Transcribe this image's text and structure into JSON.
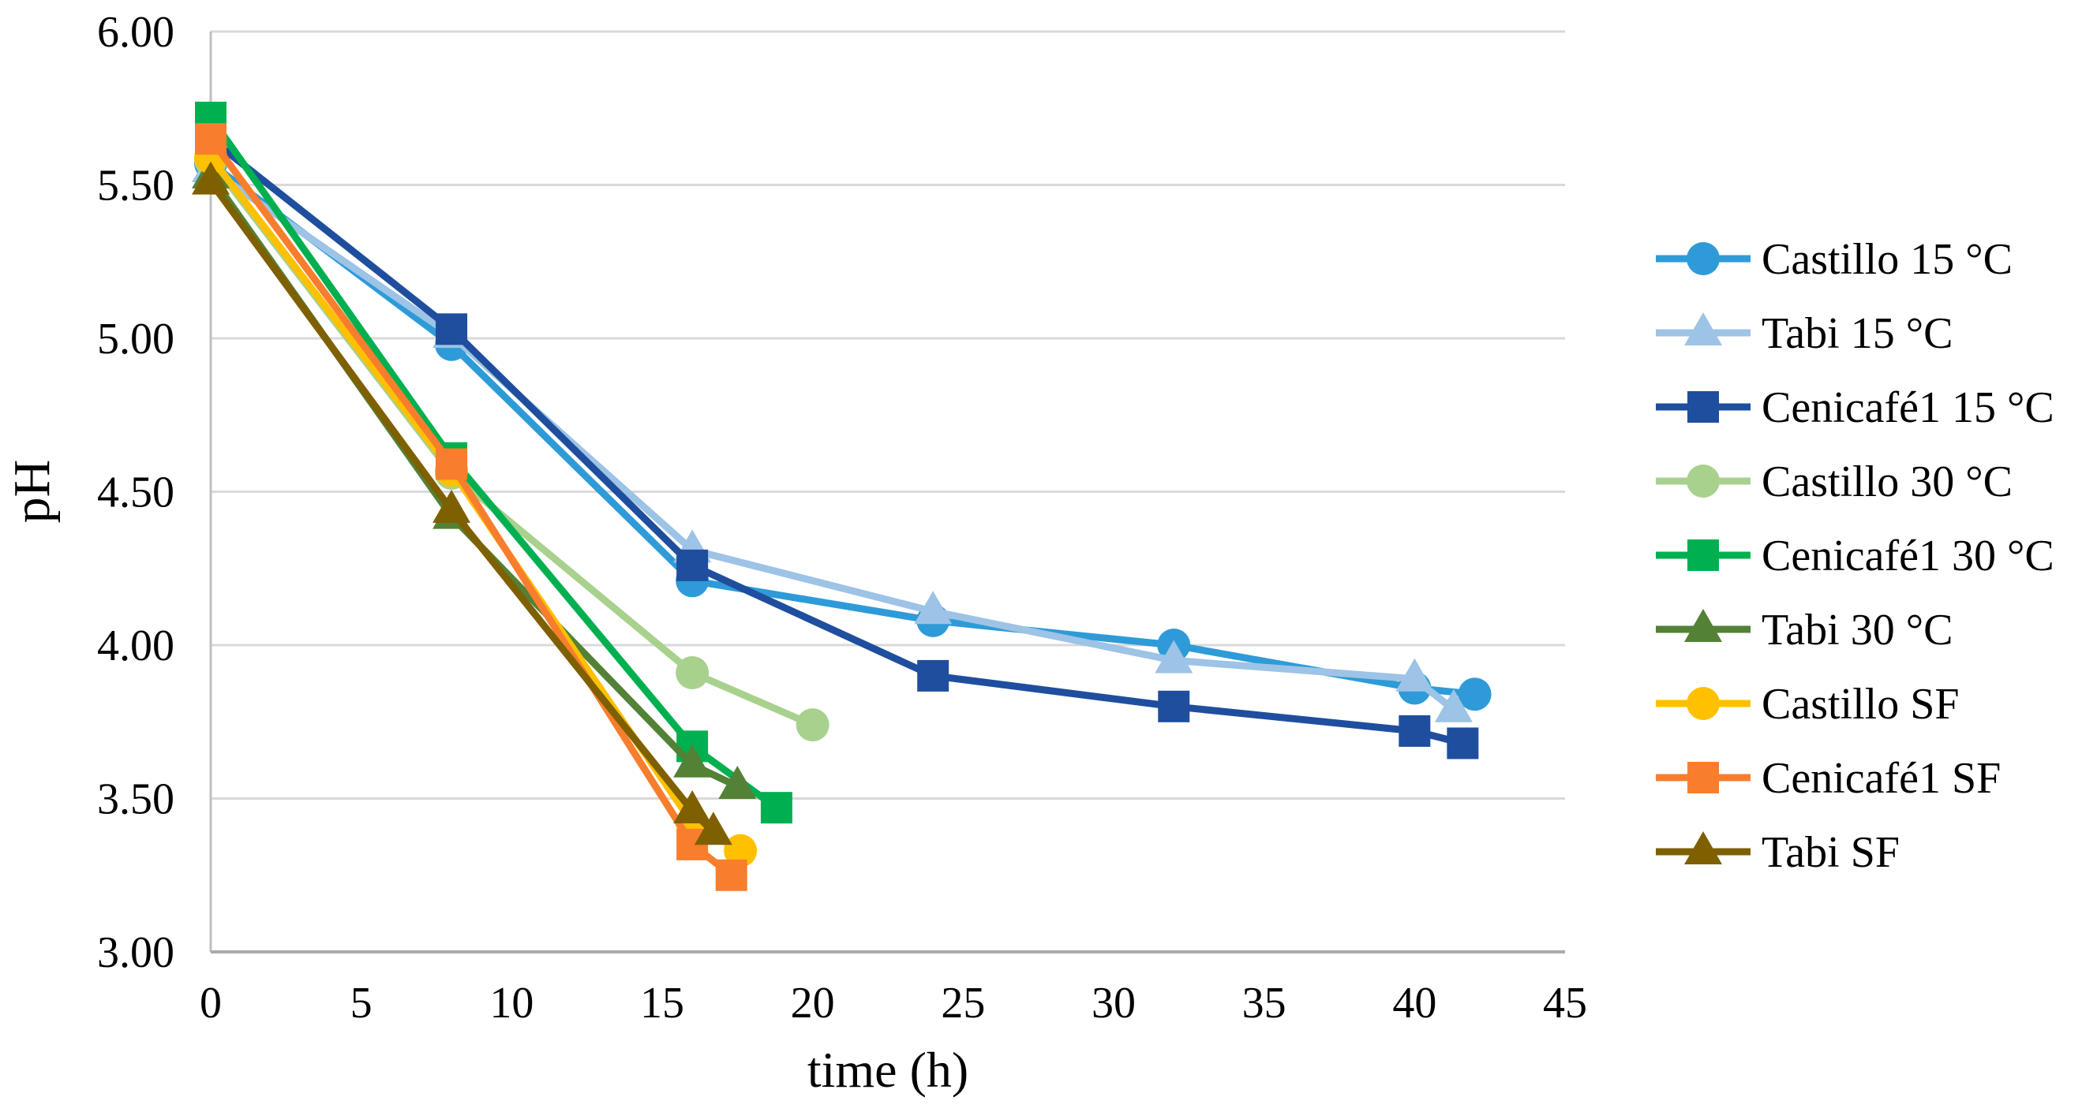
{
  "chart_data": {
    "type": "line",
    "title": "",
    "xlabel": "time (h)",
    "ylabel": "pH",
    "xlim": [
      0,
      45
    ],
    "ylim": [
      3.0,
      6.0
    ],
    "x_ticks": [
      0,
      5,
      10,
      15,
      20,
      25,
      30,
      35,
      40,
      45
    ],
    "y_ticks": [
      6.0,
      5.5,
      5.0,
      4.5,
      4.0,
      3.5,
      3.0
    ],
    "y_tick_labels": [
      "6.00",
      "5.50",
      "5.00",
      "4.50",
      "4.00",
      "3.50",
      "3.00"
    ],
    "grid": "horizontal-only",
    "legend_position": "right",
    "background_color": "#FFFFFF",
    "gridline_color": "#D9D9D9",
    "axis_line_color": "#BFBFBF",
    "bottom_axis_color": "#ABABAB",
    "text_color": "#000000",
    "series": [
      {
        "name": "Castillo 15 °C",
        "marker": "circle",
        "color": "#2E9BD8",
        "points": [
          [
            0,
            5.57
          ],
          [
            8,
            4.98
          ],
          [
            16,
            4.21
          ],
          [
            24,
            4.08
          ],
          [
            32,
            4.0
          ],
          [
            40,
            3.86
          ],
          [
            42,
            3.84
          ]
        ]
      },
      {
        "name": "Tabi 15 °C",
        "marker": "triangle",
        "color": "#9DC3E6",
        "points": [
          [
            0,
            5.55
          ],
          [
            8,
            5.01
          ],
          [
            16,
            4.31
          ],
          [
            24,
            4.11
          ],
          [
            32,
            3.95
          ],
          [
            40,
            3.89
          ],
          [
            41.3,
            3.79
          ]
        ]
      },
      {
        "name": "Cenicafé1 15 °C",
        "marker": "square",
        "color": "#1F4E9E",
        "points": [
          [
            0,
            5.65
          ],
          [
            8,
            5.03
          ],
          [
            16,
            4.26
          ],
          [
            24,
            3.9
          ],
          [
            32,
            3.8
          ],
          [
            40,
            3.72
          ],
          [
            41.6,
            3.68
          ]
        ]
      },
      {
        "name": "Castillo 30 °C",
        "marker": "circle",
        "color": "#A9D18E",
        "points": [
          [
            0,
            5.58
          ],
          [
            8,
            4.56
          ],
          [
            16,
            3.91
          ],
          [
            20,
            3.74
          ]
        ]
      },
      {
        "name": "Cenicafé1 30 °C",
        "marker": "square",
        "color": "#00B050",
        "points": [
          [
            0,
            5.72
          ],
          [
            8,
            4.61
          ],
          [
            16,
            3.67
          ],
          [
            18.8,
            3.47
          ]
        ]
      },
      {
        "name": "Tabi 30 °C",
        "marker": "triangle",
        "color": "#538135",
        "points": [
          [
            0,
            5.53
          ],
          [
            8,
            4.42
          ],
          [
            16,
            3.61
          ],
          [
            17.5,
            3.54
          ]
        ]
      },
      {
        "name": "Castillo SF",
        "marker": "circle",
        "color": "#FFC000",
        "points": [
          [
            0,
            5.59
          ],
          [
            8,
            4.57
          ],
          [
            16,
            3.42
          ],
          [
            17.6,
            3.33
          ]
        ]
      },
      {
        "name": "Cenicafé1 SF",
        "marker": "square",
        "color": "#F87E2D",
        "points": [
          [
            0,
            5.65
          ],
          [
            8,
            4.59
          ],
          [
            16,
            3.35
          ],
          [
            17.3,
            3.25
          ]
        ]
      },
      {
        "name": "Tabi SF",
        "marker": "triangle",
        "color": "#7F6000",
        "points": [
          [
            0,
            5.51
          ],
          [
            8,
            4.44
          ],
          [
            16,
            3.46
          ],
          [
            16.7,
            3.39
          ]
        ]
      }
    ]
  }
}
